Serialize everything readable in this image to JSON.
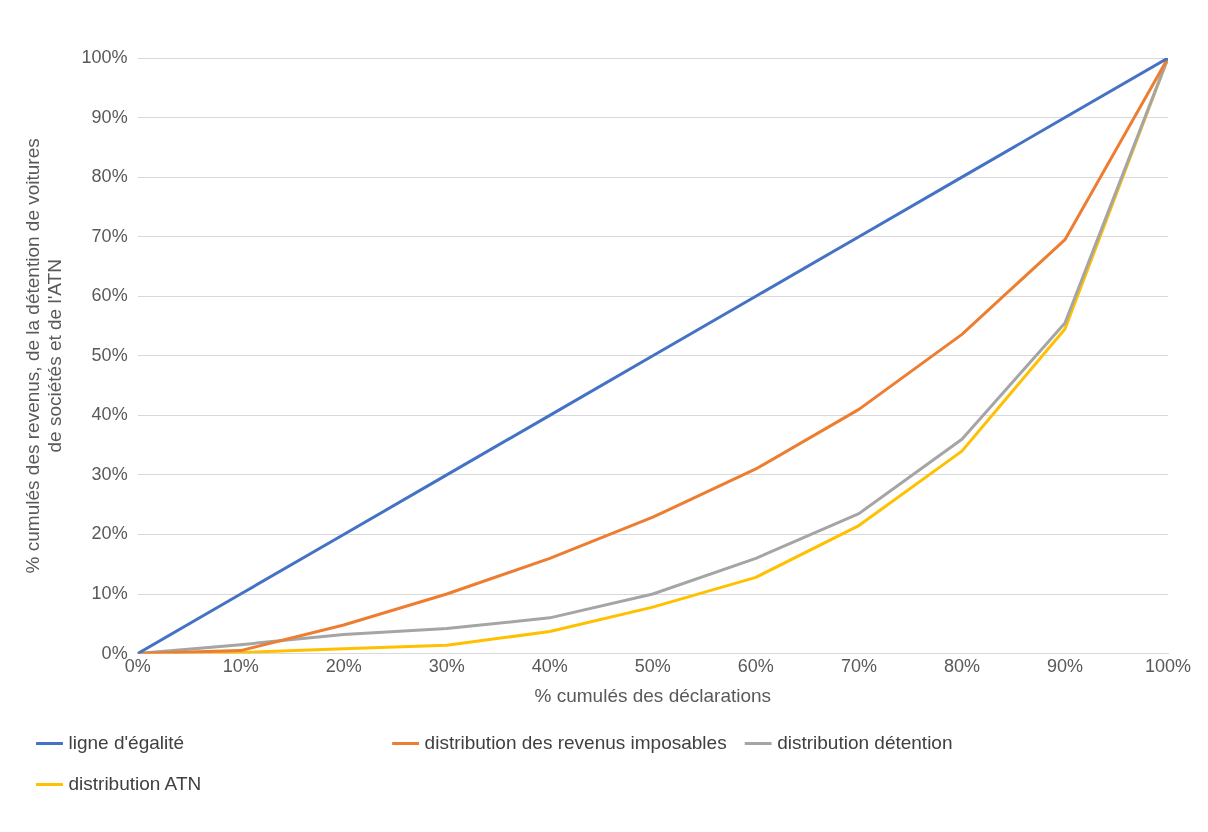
{
  "chart_data": {
    "type": "line",
    "xlabel": "% cumulés des déclarations",
    "ylabel": "% cumulés des revenus, de la détention de voitures de sociétés et de l'ATN",
    "x": [
      0,
      10,
      20,
      30,
      40,
      50,
      60,
      70,
      80,
      90,
      100
    ],
    "series": [
      {
        "name": "ligne d'égalité",
        "color": "#4472c4",
        "values": [
          0,
          10,
          20,
          30,
          40,
          50,
          60,
          70,
          80,
          90,
          100
        ]
      },
      {
        "name": "distribution des revenus imposables",
        "color": "#ed7d31",
        "values": [
          0,
          0.5,
          4.8,
          10,
          16,
          22.9,
          31,
          41,
          53.6,
          69.5,
          100
        ]
      },
      {
        "name": "distribution détention",
        "color": "#a5a5a5",
        "values": [
          0,
          1.5,
          3.2,
          4.2,
          6,
          10,
          16,
          23.5,
          36,
          55.5,
          100
        ]
      },
      {
        "name": "distribution ATN",
        "color": "#ffc000",
        "values": [
          0,
          0.2,
          0.8,
          1.4,
          3.7,
          7.8,
          12.8,
          21.5,
          34,
          54.5,
          100
        ]
      }
    ],
    "xlim": [
      0,
      100
    ],
    "ylim": [
      0,
      100
    ],
    "xticks": [
      {
        "value": 0,
        "label": "0%"
      },
      {
        "value": 10,
        "label": "10%"
      },
      {
        "value": 20,
        "label": "20%"
      },
      {
        "value": 30,
        "label": "30%"
      },
      {
        "value": 40,
        "label": "40%"
      },
      {
        "value": 50,
        "label": "50%"
      },
      {
        "value": 60,
        "label": "60%"
      },
      {
        "value": 70,
        "label": "70%"
      },
      {
        "value": 80,
        "label": "80%"
      },
      {
        "value": 90,
        "label": "90%"
      },
      {
        "value": 100,
        "label": "100%"
      }
    ],
    "yticks": [
      {
        "value": 0,
        "label": "0%"
      },
      {
        "value": 10,
        "label": "10%"
      },
      {
        "value": 20,
        "label": "20%"
      },
      {
        "value": 30,
        "label": "30%"
      },
      {
        "value": 40,
        "label": "40%"
      },
      {
        "value": 50,
        "label": "50%"
      },
      {
        "value": 60,
        "label": "60%"
      },
      {
        "value": 70,
        "label": "70%"
      },
      {
        "value": 80,
        "label": "80%"
      },
      {
        "value": 90,
        "label": "90%"
      },
      {
        "value": 100,
        "label": "100%"
      }
    ],
    "grid": "y",
    "legend": "bottom",
    "marker": "none",
    "line_style": "solid"
  }
}
